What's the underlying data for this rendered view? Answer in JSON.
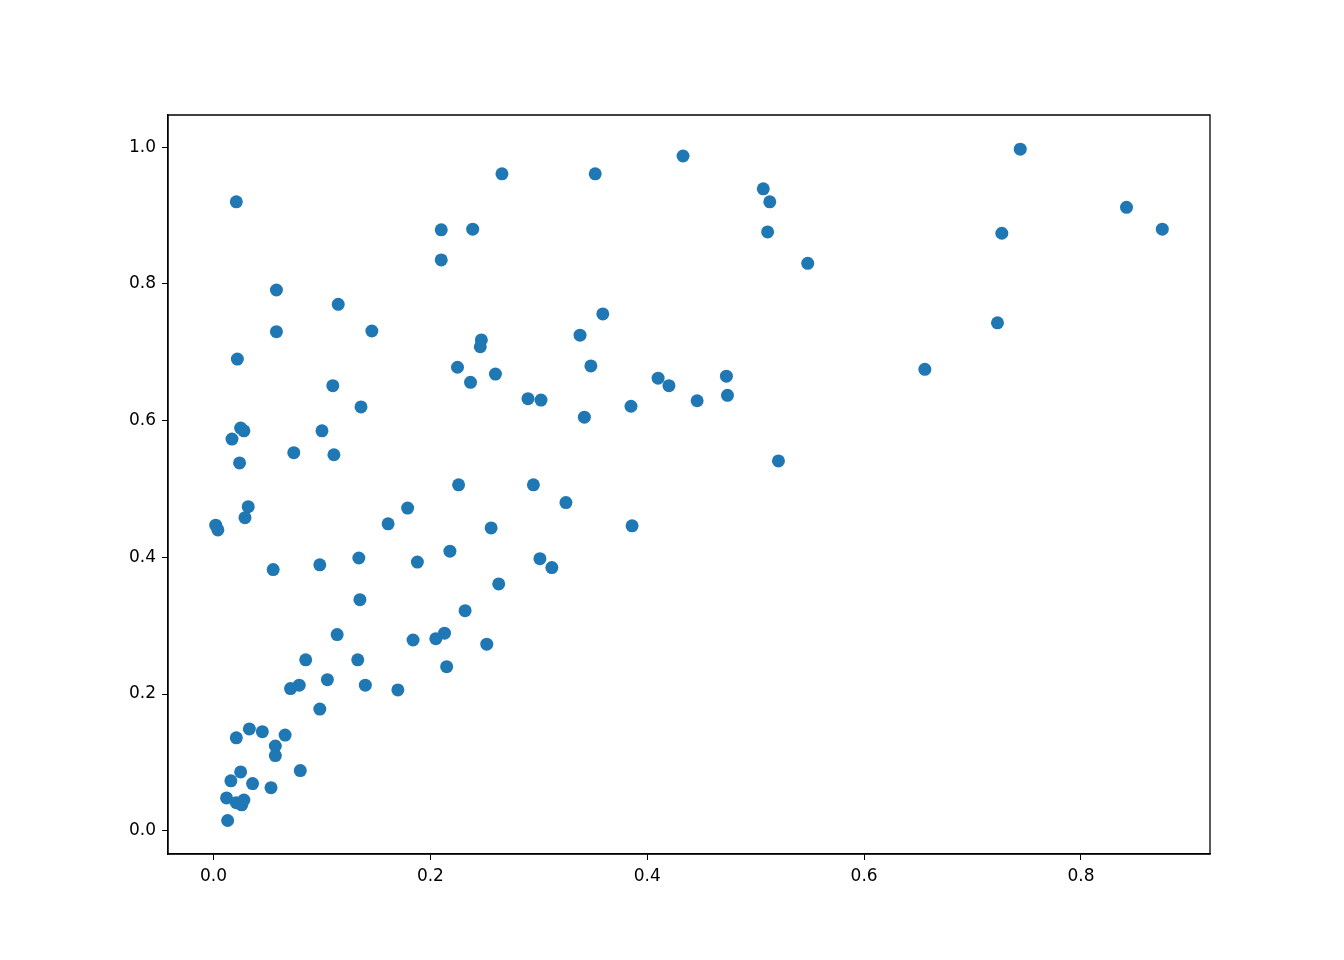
{
  "chart_data": {
    "type": "scatter",
    "marker": "circle",
    "grid": false,
    "legend": false,
    "xlim": [
      -0.042,
      0.919
    ],
    "ylim": [
      -0.034,
      1.047
    ],
    "xticks": [
      {
        "value": 0,
        "label": "0.0"
      },
      {
        "value": 0.2,
        "label": "0.2"
      },
      {
        "value": 0.4,
        "label": "0.4"
      },
      {
        "value": 0.6,
        "label": "0.6"
      },
      {
        "value": 0.8,
        "label": "0.8"
      }
    ],
    "yticks": [
      {
        "value": 0,
        "label": "0.0"
      },
      {
        "value": 0.2,
        "label": "0.2"
      },
      {
        "value": 0.4,
        "label": "0.4"
      },
      {
        "value": 0.6,
        "label": "0.6"
      },
      {
        "value": 0.8,
        "label": "0.8"
      },
      {
        "value": 1,
        "label": "1.0"
      }
    ],
    "series": [
      {
        "color": "#1f77b4",
        "x": [
          0.021,
          0.002,
          0.004,
          0.022,
          0.058,
          0.058,
          0.115,
          0.146,
          0.025,
          0.028,
          0.017,
          0.024,
          0.032,
          0.029,
          0.055,
          0.074,
          0.1,
          0.111,
          0.11,
          0.136,
          0.161,
          0.179,
          0.188,
          0.134,
          0.098,
          0.135,
          0.218,
          0.226,
          0.21,
          0.21,
          0.239,
          0.266,
          0.352,
          0.433,
          0.507,
          0.513,
          0.511,
          0.548,
          0.744,
          0.727,
          0.842,
          0.875,
          0.723,
          0.656,
          0.521,
          0.386,
          0.359,
          0.338,
          0.348,
          0.342,
          0.385,
          0.41,
          0.42,
          0.446,
          0.473,
          0.474,
          0.247,
          0.246,
          0.225,
          0.237,
          0.26,
          0.29,
          0.302,
          0.295,
          0.325,
          0.256,
          0.301,
          0.312,
          0.263,
          0.232,
          0.213,
          0.205,
          0.184,
          0.252,
          0.215,
          0.114,
          0.133,
          0.085,
          0.079,
          0.071,
          0.105,
          0.14,
          0.17,
          0.098,
          0.033,
          0.045,
          0.021,
          0.066,
          0.057,
          0.057,
          0.08,
          0.036,
          0.053,
          0.025,
          0.016,
          0.012,
          0.021,
          0.028,
          0.026,
          0.013
        ],
        "values": [
          0.92,
          0.447,
          0.44,
          0.69,
          0.791,
          0.73,
          0.77,
          0.731,
          0.589,
          0.585,
          0.573,
          0.538,
          0.474,
          0.458,
          0.382,
          0.553,
          0.585,
          0.55,
          0.651,
          0.62,
          0.449,
          0.472,
          0.393,
          0.399,
          0.389,
          0.338,
          0.409,
          0.506,
          0.879,
          0.835,
          0.88,
          0.961,
          0.961,
          0.987,
          0.939,
          0.92,
          0.876,
          0.83,
          0.997,
          0.874,
          0.912,
          0.88,
          0.743,
          0.675,
          0.541,
          0.446,
          0.756,
          0.725,
          0.68,
          0.605,
          0.621,
          0.662,
          0.651,
          0.629,
          0.665,
          0.637,
          0.718,
          0.708,
          0.678,
          0.656,
          0.668,
          0.632,
          0.63,
          0.506,
          0.48,
          0.443,
          0.398,
          0.385,
          0.361,
          0.322,
          0.289,
          0.281,
          0.279,
          0.273,
          0.24,
          0.287,
          0.25,
          0.25,
          0.213,
          0.208,
          0.221,
          0.213,
          0.206,
          0.178,
          0.149,
          0.145,
          0.136,
          0.14,
          0.124,
          0.11,
          0.088,
          0.069,
          0.063,
          0.086,
          0.073,
          0.048,
          0.041,
          0.045,
          0.038,
          0.015
        ]
      }
    ]
  }
}
